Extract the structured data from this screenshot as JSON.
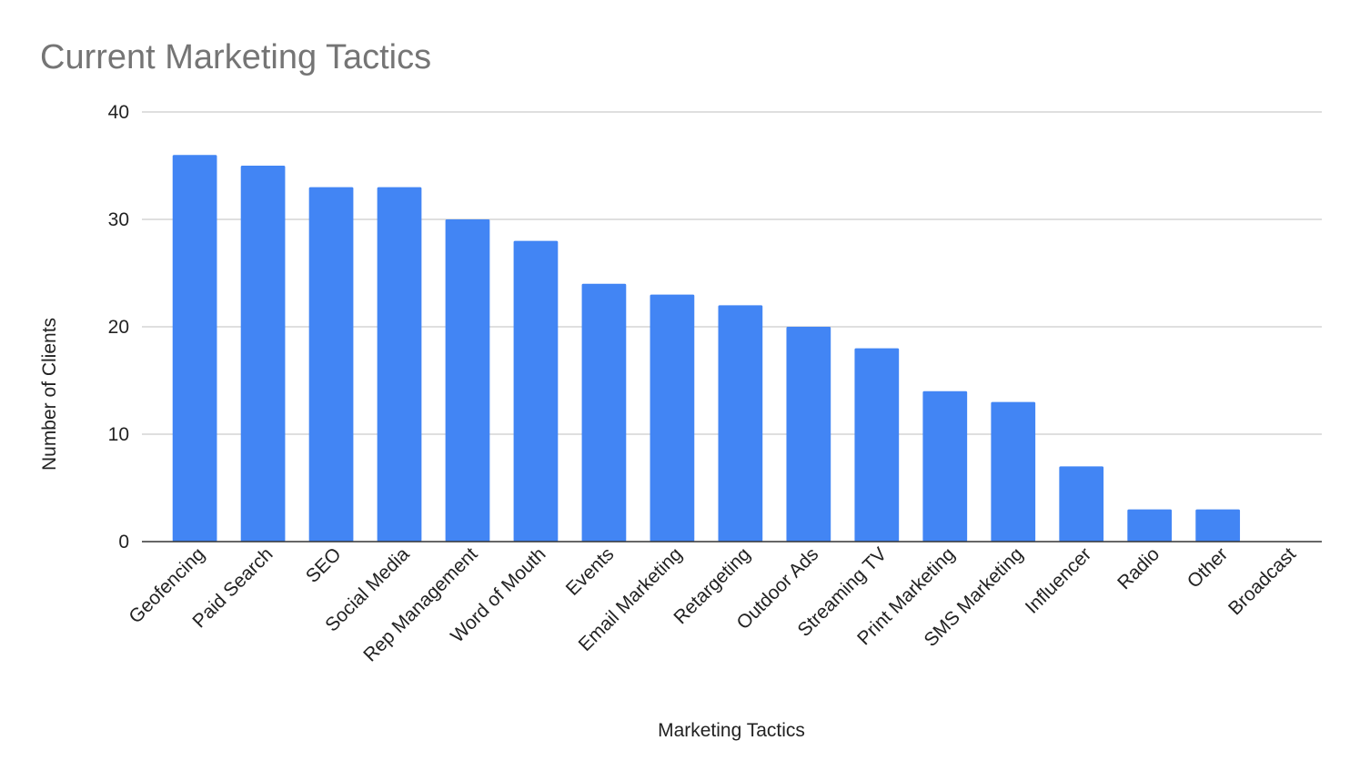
{
  "chart_data": {
    "type": "bar",
    "title": "Current Marketing Tactics",
    "xlabel": "Marketing Tactics",
    "ylabel": "Number of Clients",
    "categories": [
      "Geofencing",
      "Paid Search",
      "SEO",
      "Social Media",
      "Rep Management",
      "Word of Mouth",
      "Events",
      "Email Marketing",
      "Retargeting",
      "Outdoor Ads",
      "Streaming TV",
      "Print Marketing",
      "SMS Marketing",
      "Influencer",
      "Radio",
      "Other",
      "Broadcast"
    ],
    "values": [
      36,
      35,
      33,
      33,
      30,
      28,
      24,
      23,
      22,
      20,
      18,
      14,
      13,
      7,
      3,
      3,
      0
    ],
    "ylim": [
      0,
      40
    ],
    "yticks": [
      "0",
      "10",
      "20",
      "30",
      "40"
    ],
    "grid": true,
    "legend": "none",
    "bar_color": "#4285f4"
  }
}
